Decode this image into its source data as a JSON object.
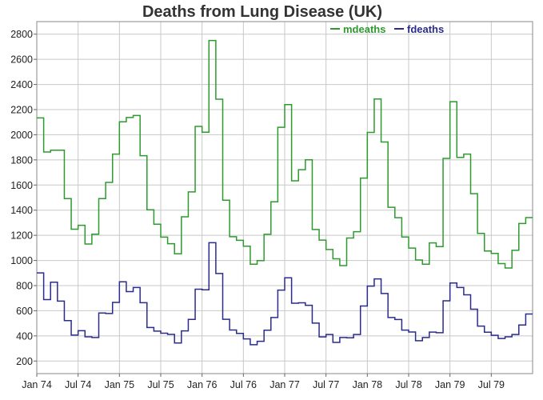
{
  "chart_data": {
    "type": "line",
    "title": "Deaths from Lung Disease (UK)",
    "xlabel": "",
    "ylabel": "",
    "x": [
      "Jan 74",
      "Feb 74",
      "Mar 74",
      "Apr 74",
      "May 74",
      "Jun 74",
      "Jul 74",
      "Aug 74",
      "Sep 74",
      "Oct 74",
      "Nov 74",
      "Dec 74",
      "Jan 75",
      "Feb 75",
      "Mar 75",
      "Apr 75",
      "May 75",
      "Jun 75",
      "Jul 75",
      "Aug 75",
      "Sep 75",
      "Oct 75",
      "Nov 75",
      "Dec 75",
      "Jan 76",
      "Feb 76",
      "Mar 76",
      "Apr 76",
      "May 76",
      "Jun 76",
      "Jul 76",
      "Aug 76",
      "Sep 76",
      "Oct 76",
      "Nov 76",
      "Dec 76",
      "Jan 77",
      "Feb 77",
      "Mar 77",
      "Apr 77",
      "May 77",
      "Jun 77",
      "Jul 77",
      "Aug 77",
      "Sep 77",
      "Oct 77",
      "Nov 77",
      "Dec 77",
      "Jan 78",
      "Feb 78",
      "Mar 78",
      "Apr 78",
      "May 78",
      "Jun 78",
      "Jul 78",
      "Aug 78",
      "Sep 78",
      "Oct 78",
      "Nov 78",
      "Dec 78",
      "Jan 79",
      "Feb 79",
      "Mar 79",
      "Apr 79",
      "May 79",
      "Jun 79",
      "Jul 79",
      "Aug 79",
      "Sep 79",
      "Oct 79",
      "Nov 79",
      "Dec 79"
    ],
    "x_tick_labels": [
      "Jan 74",
      "Jul 74",
      "Jan 75",
      "Jul 75",
      "Jan 76",
      "Jul 76",
      "Jan 77",
      "Jul 77",
      "Jan 78",
      "Jul 78",
      "Jan 79",
      "Jul 79"
    ],
    "y_tick_labels": [
      "200",
      "400",
      "600",
      "800",
      "1000",
      "1200",
      "1400",
      "1600",
      "1800",
      "2000",
      "2200",
      "2400",
      "2600",
      "2800"
    ],
    "ylim": [
      100,
      2900
    ],
    "step": true,
    "grid": true,
    "legend_position": "top-right",
    "series": [
      {
        "name": "mdeaths",
        "color": "#2e9a2e",
        "values": [
          2134,
          1863,
          1877,
          1877,
          1492,
          1249,
          1280,
          1131,
          1209,
          1492,
          1621,
          1846,
          2103,
          2137,
          2153,
          1833,
          1403,
          1288,
          1186,
          1133,
          1053,
          1347,
          1545,
          2066,
          2020,
          2750,
          2283,
          1479,
          1189,
          1160,
          1113,
          970,
          999,
          1208,
          1467,
          2059,
          2240,
          1634,
          1722,
          1801,
          1246,
          1162,
          1087,
          1013,
          959,
          1179,
          1229,
          1655,
          2019,
          2284,
          1942,
          1423,
          1340,
          1187,
          1098,
          1004,
          970,
          1140,
          1110,
          1812,
          2263,
          1820,
          1846,
          1531,
          1215,
          1075,
          1056,
          975,
          940,
          1081,
          1294,
          1341
        ]
      },
      {
        "name": "fdeaths",
        "color": "#2b2b8c",
        "values": [
          901,
          689,
          827,
          677,
          522,
          406,
          441,
          393,
          387,
          582,
          578,
          666,
          830,
          752,
          785,
          664,
          467,
          438,
          421,
          412,
          343,
          440,
          531,
          771,
          767,
          1141,
          896,
          532,
          447,
          420,
          376,
          330,
          357,
          445,
          546,
          764,
          862,
          660,
          663,
          643,
          502,
          392,
          411,
          348,
          387,
          385,
          411,
          638,
          796,
          853,
          737,
          546,
          530,
          446,
          431,
          362,
          387,
          430,
          425,
          679,
          821,
          785,
          727,
          612,
          478,
          429,
          405,
          379,
          393,
          411,
          487,
          574
        ]
      }
    ]
  }
}
